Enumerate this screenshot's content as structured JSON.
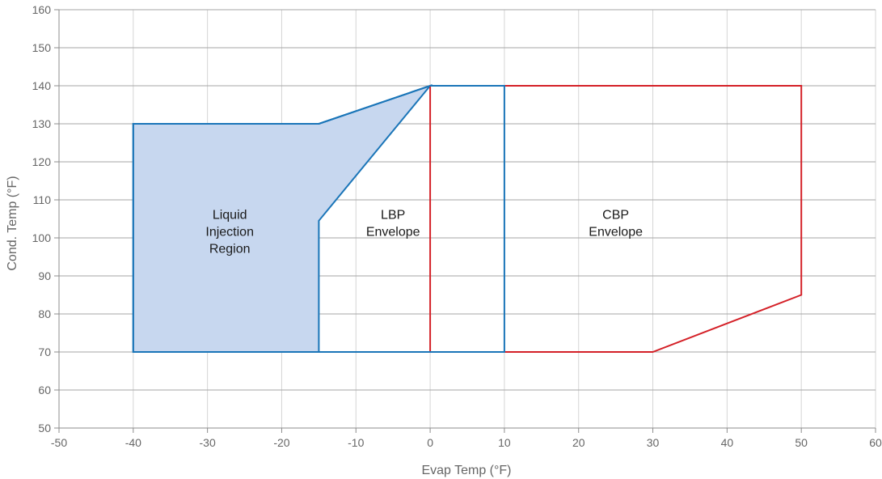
{
  "chart_data": {
    "type": "area",
    "xlabel": "Evap Temp (°F)",
    "ylabel": "Cond. Temp (°F)",
    "xlim": [
      -50,
      60
    ],
    "ylim": [
      50,
      160
    ],
    "x_ticks": [
      -50,
      -40,
      -30,
      -20,
      -10,
      0,
      10,
      20,
      30,
      40,
      50,
      60
    ],
    "y_ticks": [
      50,
      60,
      70,
      80,
      90,
      100,
      110,
      120,
      130,
      140,
      150,
      160
    ],
    "grid": true,
    "series": [
      {
        "color": "#c7d7ef",
        "stroke": "#1a75b8",
        "fill": true,
        "label_lines": [
          "Liquid",
          "Injection",
          "Region"
        ],
        "label_at": [
          -27,
          105
        ],
        "points": [
          [
            -40,
            70
          ],
          [
            -40,
            130
          ],
          [
            -15,
            130
          ],
          [
            0,
            140
          ],
          [
            -15,
            104.5
          ],
          [
            -15,
            70
          ]
        ]
      },
      {
        "color": "#d42027",
        "stroke": "#d42027",
        "fill": false,
        "label_lines": [
          "CBP",
          "Envelope"
        ],
        "label_at": [
          25,
          105
        ],
        "points": [
          [
            0,
            70
          ],
          [
            0,
            140
          ],
          [
            50,
            140
          ],
          [
            50,
            85
          ],
          [
            30,
            70
          ]
        ]
      },
      {
        "color": "#1a75b8",
        "stroke": "#1a75b8",
        "fill": false,
        "label_lines": [
          "LBP",
          "Envelope"
        ],
        "label_at": [
          -5,
          105
        ],
        "points": [
          [
            -40,
            70
          ],
          [
            -40,
            130
          ],
          [
            -15,
            130
          ],
          [
            0,
            140
          ],
          [
            10,
            140
          ],
          [
            10,
            70
          ]
        ]
      }
    ]
  }
}
